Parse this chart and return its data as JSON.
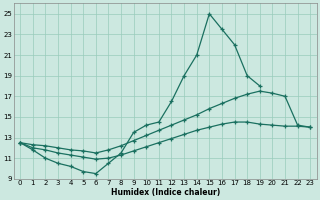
{
  "xlabel": "Humidex (Indice chaleur)",
  "bg_color": "#cce8e0",
  "grid_color": "#99ccbb",
  "line_color": "#1a7060",
  "xlim": [
    -0.5,
    23.5
  ],
  "ylim": [
    9,
    26
  ],
  "yticks": [
    9,
    11,
    13,
    15,
    17,
    19,
    21,
    23,
    25
  ],
  "xticks": [
    0,
    1,
    2,
    3,
    4,
    5,
    6,
    7,
    8,
    9,
    10,
    11,
    12,
    13,
    14,
    15,
    16,
    17,
    18,
    19,
    20,
    21,
    22,
    23
  ],
  "curve1_x": [
    0,
    1,
    2,
    3,
    4,
    5,
    6,
    7,
    8,
    9,
    10,
    11,
    12,
    13,
    14,
    15,
    16,
    17,
    18,
    19
  ],
  "curve1_y": [
    12.5,
    11.8,
    11.0,
    10.5,
    10.2,
    9.7,
    9.5,
    10.5,
    11.5,
    13.5,
    14.2,
    14.5,
    16.5,
    19.0,
    21.0,
    25.0,
    23.5,
    22.0,
    19.0,
    18.0
  ],
  "curve2_x": [
    0,
    1,
    2,
    3,
    4,
    5,
    6,
    7,
    8,
    9,
    10,
    11,
    12,
    13,
    14,
    15,
    16,
    17,
    18,
    19,
    20,
    21,
    22,
    23
  ],
  "curve2_y": [
    12.5,
    12.3,
    12.2,
    12.0,
    11.8,
    11.7,
    11.5,
    11.8,
    12.2,
    12.7,
    13.2,
    13.7,
    14.2,
    14.7,
    15.2,
    15.8,
    16.3,
    16.8,
    17.2,
    17.5,
    17.3,
    17.0,
    14.2,
    14.0
  ],
  "curve3_x": [
    0,
    1,
    2,
    3,
    4,
    5,
    6,
    7,
    8,
    9,
    10,
    11,
    12,
    13,
    14,
    15,
    16,
    17,
    18,
    19,
    20,
    21,
    22,
    23
  ],
  "curve3_y": [
    12.5,
    12.0,
    11.8,
    11.5,
    11.3,
    11.1,
    10.9,
    11.0,
    11.3,
    11.7,
    12.1,
    12.5,
    12.9,
    13.3,
    13.7,
    14.0,
    14.3,
    14.5,
    14.5,
    14.3,
    14.2,
    14.1,
    14.1,
    14.0
  ]
}
